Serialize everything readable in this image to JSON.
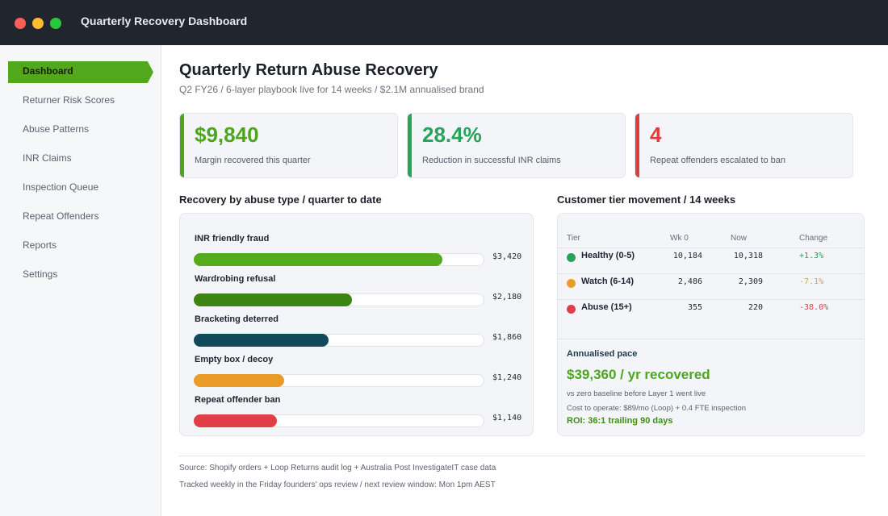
{
  "window": {
    "title": "Quarterly Recovery Dashboard"
  },
  "sidebar": {
    "items": [
      {
        "label": "Dashboard",
        "active": true
      },
      {
        "label": "Returner Risk Scores"
      },
      {
        "label": "Abuse Patterns"
      },
      {
        "label": "INR Claims"
      },
      {
        "label": "Inspection Queue"
      },
      {
        "label": "Repeat Offenders"
      },
      {
        "label": "Reports"
      },
      {
        "label": "Settings"
      }
    ]
  },
  "header": {
    "title": "Quarterly Return Abuse Recovery",
    "subtitle": "Q2 FY26 / 6-layer playbook live for 14 weeks / $2.1M annualised brand"
  },
  "kpis": [
    {
      "value": "$9,840",
      "label": "Margin recovered this quarter",
      "color": "#4ea61f"
    },
    {
      "value": "28.4%",
      "label": "Reduction in successful INR claims",
      "color": "#27a35a"
    },
    {
      "value": "4",
      "label": "Repeat offenders escalated to ban",
      "color": "#dc3e3e"
    }
  ],
  "recovery": {
    "title": "Recovery by abuse type / quarter to date",
    "max": 4000,
    "items": [
      {
        "label": "INR friendly fraud",
        "value": 3420,
        "display": "$3,420",
        "color": "#55ab1b"
      },
      {
        "label": "Wardrobing refusal",
        "value": 2180,
        "display": "$2,180",
        "color": "#3c8513"
      },
      {
        "label": "Bracketing deterred",
        "value": 1860,
        "display": "$1,860",
        "color": "#0f4a5b"
      },
      {
        "label": "Empty box / decoy",
        "value": 1240,
        "display": "$1,240",
        "color": "#e99d27"
      },
      {
        "label": "Repeat offender ban",
        "value": 1140,
        "display": "$1,140",
        "color": "#df3f45"
      }
    ]
  },
  "tiers": {
    "title": "Customer tier movement / 14 weeks",
    "headers": {
      "tier": "Tier",
      "wk0": "Wk 0",
      "now": "Now",
      "change": "Change"
    },
    "rows": [
      {
        "tier": "Healthy (0-5)",
        "wk0": "10,184",
        "now": "10,318",
        "change": "+1.3%",
        "dot_color": "#27a35a",
        "change_color": "#27a35a"
      },
      {
        "tier": "Watch (6-14)",
        "wk0": "2,486",
        "now": "2,309",
        "change": "-7.1%",
        "dot_color": "#e99d27",
        "change_color": "#e99d27"
      },
      {
        "tier": "Abuse (15+)",
        "wk0": "355",
        "now": "220",
        "change": "-38.0%",
        "dot_color": "#df3f45",
        "change_color": "#df3f45"
      }
    ],
    "pace": {
      "title": "Annualised pace",
      "value": "$39,360 / yr recovered",
      "note1": "vs zero baseline before Layer 1 went live",
      "note2": "Cost to operate: $89/mo (Loop) + 0.4 FTE inspection",
      "roi": "ROI: 36:1 trailing 90 days"
    }
  },
  "footer": {
    "source": "Source: Shopify orders + Loop Returns audit log + Australia Post InvestigateIT case data",
    "tracked": "Tracked weekly in the Friday founders' ops review / next review window: Mon 1pm AEST"
  }
}
